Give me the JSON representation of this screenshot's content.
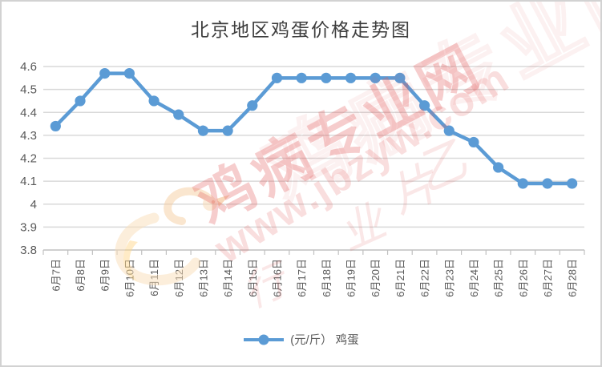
{
  "window": {
    "border_color": "#d2d2d2",
    "background": "#ffffff"
  },
  "chart_data": {
    "type": "line",
    "title": "北京地区鸡蛋价格走势图",
    "categories": [
      "6月7日",
      "6月8日",
      "6月9日",
      "6月10日",
      "6月11日",
      "6月12日",
      "6月13日",
      "6月14日",
      "6月15日",
      "6月16日",
      "6月17日",
      "6月18日",
      "6月19日",
      "6月20日",
      "6月21日",
      "6月22日",
      "6月23日",
      "6月24日",
      "6月25日",
      "6月26日",
      "6月27日",
      "6月28日"
    ],
    "series": [
      {
        "name": "(元/斤） 鸡蛋",
        "color": "#5B9BD5",
        "values": [
          4.34,
          4.45,
          4.57,
          4.57,
          4.45,
          4.39,
          4.32,
          4.32,
          4.43,
          4.55,
          4.55,
          4.55,
          4.55,
          4.55,
          4.55,
          4.43,
          4.32,
          4.27,
          4.16,
          4.09,
          4.09,
          4.09
        ]
      }
    ],
    "ylim": [
      3.8,
      4.6
    ],
    "yticks": [
      3.8,
      3.9,
      4,
      4.1,
      4.2,
      4.3,
      4.4,
      4.5,
      4.6
    ],
    "ytick_labels": [
      "3.8",
      "3.9",
      "4",
      "4.1",
      "4.2",
      "4.3",
      "4.4",
      "4.5",
      "4.6"
    ],
    "xlabel": "",
    "ylabel": "",
    "grid": true,
    "legend_position": "bottom"
  },
  "watermark": {
    "site_name": "鸡病专业网",
    "site_url": "www.jbzyw.com",
    "color": "#e25d5d",
    "faint_glyphs": [
      "片",
      "乙",
      "业",
      "行"
    ]
  },
  "colors": {
    "grid": "#d9d9d9",
    "axis": "#c0c0c0",
    "tick_label": "#595959",
    "title": "#3d3d3d"
  }
}
